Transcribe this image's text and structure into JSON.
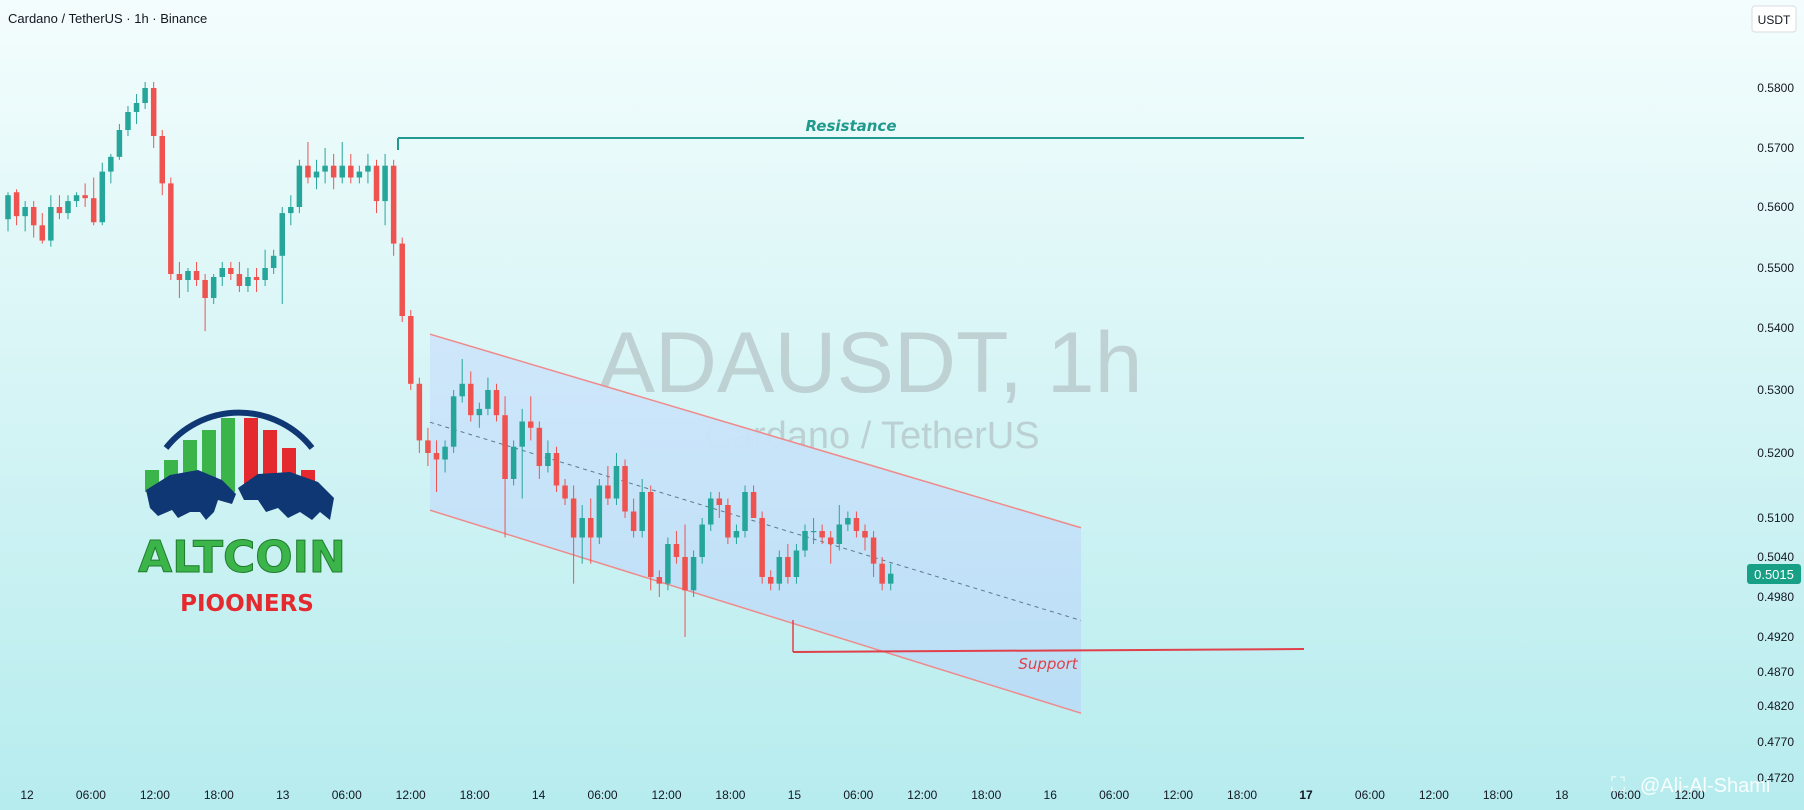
{
  "header": {
    "title": "Cardano / TetherUS · 1h · Binance",
    "currency": "USDT"
  },
  "watermark": {
    "symbol": "ADAUSDT, 1h",
    "name": "Cardano / TetherUS"
  },
  "logo": {
    "name": "ALTCOIN",
    "subtitle": "PIOONERS"
  },
  "author": "@Ali-Al-Shami",
  "colors": {
    "up": "#26a69a",
    "down": "#ef5350",
    "resistance": "#1f9a8c",
    "support": "#e0404a",
    "channel_fill": "#cfe6fb",
    "channel_line": "#ef8a8a",
    "price_badge": "#17a085"
  },
  "chart_data": {
    "type": "candlestick",
    "interval": "1h",
    "y_ticks": [
      "0.5800",
      "0.5700",
      "0.5600",
      "0.5500",
      "0.5400",
      "0.5300",
      "0.5200",
      "0.5100",
      "0.5040",
      "0.4980",
      "0.4920",
      "0.4870",
      "0.4820",
      "0.4770",
      "0.4720"
    ],
    "x_ticks": [
      "12",
      "06:00",
      "12:00",
      "18:00",
      "13",
      "06:00",
      "12:00",
      "18:00",
      "14",
      "06:00",
      "12:00",
      "18:00",
      "15",
      "06:00",
      "12:00",
      "18:00",
      "16",
      "06:00",
      "12:00",
      "18:00",
      "17",
      "06:00",
      "12:00",
      "18:00",
      "18",
      "06:00",
      "12:00"
    ],
    "last_price": "0.5015",
    "annotations": {
      "resistance": {
        "label": "Resistance",
        "price": 0.5718
      },
      "support": {
        "label": "Support",
        "price": 0.4905
      }
    },
    "channel": {
      "upper": [
        [
          0.539,
          0.5085
        ]
      ],
      "lower": [
        [
          0.5112,
          0.481
        ]
      ]
    },
    "candles": [
      [
        0.558,
        0.5625,
        0.556,
        0.562
      ],
      [
        0.5625,
        0.563,
        0.557,
        0.5585
      ],
      [
        0.5585,
        0.561,
        0.556,
        0.56
      ],
      [
        0.56,
        0.561,
        0.555,
        0.557
      ],
      [
        0.557,
        0.559,
        0.554,
        0.5545
      ],
      [
        0.5545,
        0.562,
        0.5535,
        0.56
      ],
      [
        0.56,
        0.562,
        0.558,
        0.559
      ],
      [
        0.559,
        0.562,
        0.558,
        0.561
      ],
      [
        0.561,
        0.5625,
        0.56,
        0.562
      ],
      [
        0.562,
        0.564,
        0.56,
        0.5615
      ],
      [
        0.5615,
        0.565,
        0.557,
        0.5575
      ],
      [
        0.5575,
        0.5675,
        0.557,
        0.566
      ],
      [
        0.566,
        0.569,
        0.564,
        0.5685
      ],
      [
        0.5685,
        0.574,
        0.568,
        0.573
      ],
      [
        0.573,
        0.577,
        0.572,
        0.576
      ],
      [
        0.576,
        0.579,
        0.574,
        0.5775
      ],
      [
        0.5775,
        0.581,
        0.5765,
        0.58
      ],
      [
        0.58,
        0.581,
        0.57,
        0.572
      ],
      [
        0.572,
        0.573,
        0.562,
        0.564
      ],
      [
        0.564,
        0.565,
        0.548,
        0.549
      ],
      [
        0.549,
        0.551,
        0.545,
        0.548
      ],
      [
        0.548,
        0.55,
        0.546,
        0.5495
      ],
      [
        0.5495,
        0.551,
        0.547,
        0.548
      ],
      [
        0.548,
        0.549,
        0.5395,
        0.545
      ],
      [
        0.545,
        0.549,
        0.544,
        0.5485
      ],
      [
        0.5485,
        0.551,
        0.547,
        0.55
      ],
      [
        0.55,
        0.551,
        0.548,
        0.549
      ],
      [
        0.549,
        0.551,
        0.546,
        0.547
      ],
      [
        0.547,
        0.55,
        0.546,
        0.5485
      ],
      [
        0.5485,
        0.55,
        0.546,
        0.548
      ],
      [
        0.548,
        0.553,
        0.547,
        0.55
      ],
      [
        0.55,
        0.553,
        0.549,
        0.552
      ],
      [
        0.552,
        0.56,
        0.544,
        0.559
      ],
      [
        0.559,
        0.562,
        0.557,
        0.56
      ],
      [
        0.56,
        0.568,
        0.559,
        0.567
      ],
      [
        0.567,
        0.571,
        0.564,
        0.565
      ],
      [
        0.565,
        0.568,
        0.563,
        0.566
      ],
      [
        0.566,
        0.57,
        0.564,
        0.567
      ],
      [
        0.567,
        0.569,
        0.563,
        0.565
      ],
      [
        0.565,
        0.571,
        0.564,
        0.567
      ],
      [
        0.567,
        0.569,
        0.564,
        0.565
      ],
      [
        0.565,
        0.567,
        0.564,
        0.566
      ],
      [
        0.566,
        0.569,
        0.564,
        0.567
      ],
      [
        0.567,
        0.568,
        0.559,
        0.561
      ],
      [
        0.561,
        0.569,
        0.557,
        0.567
      ],
      [
        0.567,
        0.568,
        0.552,
        0.554
      ],
      [
        0.554,
        0.555,
        0.541,
        0.542
      ],
      [
        0.542,
        0.543,
        0.53,
        0.531
      ],
      [
        0.531,
        0.532,
        0.52,
        0.522
      ],
      [
        0.522,
        0.524,
        0.518,
        0.52
      ],
      [
        0.52,
        0.522,
        0.514,
        0.519
      ],
      [
        0.519,
        0.522,
        0.517,
        0.521
      ],
      [
        0.521,
        0.53,
        0.52,
        0.529
      ],
      [
        0.529,
        0.535,
        0.528,
        0.531
      ],
      [
        0.531,
        0.533,
        0.525,
        0.526
      ],
      [
        0.526,
        0.528,
        0.524,
        0.527
      ],
      [
        0.527,
        0.532,
        0.526,
        0.53
      ],
      [
        0.53,
        0.531,
        0.525,
        0.526
      ],
      [
        0.526,
        0.529,
        0.507,
        0.516
      ],
      [
        0.516,
        0.522,
        0.515,
        0.521
      ],
      [
        0.521,
        0.527,
        0.513,
        0.525
      ],
      [
        0.525,
        0.529,
        0.522,
        0.524
      ],
      [
        0.524,
        0.525,
        0.516,
        0.518
      ],
      [
        0.518,
        0.522,
        0.517,
        0.52
      ],
      [
        0.52,
        0.521,
        0.514,
        0.515
      ],
      [
        0.515,
        0.516,
        0.512,
        0.513
      ],
      [
        0.513,
        0.515,
        0.5,
        0.507
      ],
      [
        0.507,
        0.512,
        0.503,
        0.51
      ],
      [
        0.51,
        0.513,
        0.503,
        0.507
      ],
      [
        0.507,
        0.516,
        0.506,
        0.515
      ],
      [
        0.515,
        0.518,
        0.512,
        0.513
      ],
      [
        0.513,
        0.52,
        0.512,
        0.518
      ],
      [
        0.518,
        0.519,
        0.51,
        0.511
      ],
      [
        0.511,
        0.513,
        0.507,
        0.508
      ],
      [
        0.508,
        0.516,
        0.507,
        0.514
      ],
      [
        0.514,
        0.515,
        0.499,
        0.501
      ],
      [
        0.501,
        0.502,
        0.498,
        0.5
      ],
      [
        0.5,
        0.507,
        0.499,
        0.506
      ],
      [
        0.506,
        0.508,
        0.503,
        0.504
      ],
      [
        0.504,
        0.509,
        0.492,
        0.499
      ],
      [
        0.499,
        0.505,
        0.498,
        0.504
      ],
      [
        0.504,
        0.51,
        0.503,
        0.509
      ],
      [
        0.509,
        0.514,
        0.508,
        0.513
      ],
      [
        0.513,
        0.514,
        0.51,
        0.512
      ],
      [
        0.512,
        0.513,
        0.506,
        0.507
      ],
      [
        0.507,
        0.509,
        0.506,
        0.508
      ],
      [
        0.508,
        0.515,
        0.507,
        0.514
      ],
      [
        0.514,
        0.515,
        0.51,
        0.51
      ],
      [
        0.51,
        0.511,
        0.5,
        0.501
      ],
      [
        0.501,
        0.502,
        0.499,
        0.5
      ],
      [
        0.5,
        0.505,
        0.499,
        0.504
      ],
      [
        0.504,
        0.506,
        0.5,
        0.501
      ],
      [
        0.501,
        0.506,
        0.5,
        0.505
      ],
      [
        0.505,
        0.509,
        0.504,
        0.508
      ],
      [
        0.508,
        0.51,
        0.506,
        0.508
      ],
      [
        0.508,
        0.509,
        0.506,
        0.507
      ],
      [
        0.507,
        0.508,
        0.503,
        0.506
      ],
      [
        0.506,
        0.512,
        0.505,
        0.509
      ],
      [
        0.509,
        0.511,
        0.508,
        0.51
      ],
      [
        0.51,
        0.511,
        0.507,
        0.508
      ],
      [
        0.508,
        0.509,
        0.505,
        0.507
      ],
      [
        0.507,
        0.508,
        0.501,
        0.503
      ],
      [
        0.503,
        0.504,
        0.499,
        0.5
      ],
      [
        0.5,
        0.503,
        0.499,
        0.5015
      ]
    ]
  }
}
